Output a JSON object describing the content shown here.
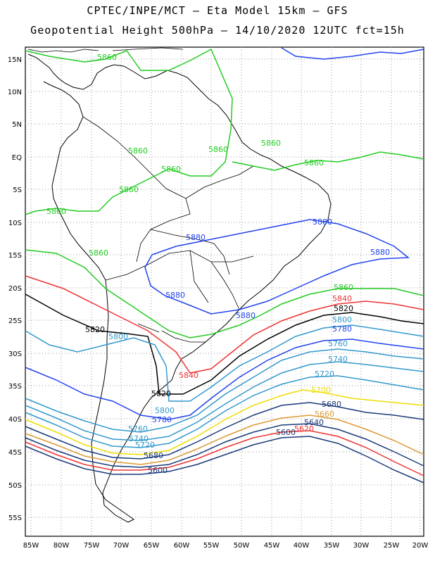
{
  "header": {
    "title_line1": "CPTEC/INPE/MCT –  Eta Model 15km – GFS",
    "title_line2": "Geopotential Height 500hPa – 14/10/2020 12UTC fct=15h"
  },
  "map": {
    "lat_ticks": [
      "15N",
      "10N",
      "5N",
      "EQ",
      "5S",
      "10S",
      "15S",
      "20S",
      "25S",
      "30S",
      "35S",
      "40S",
      "45S",
      "50S",
      "55S"
    ],
    "lon_ticks": [
      "85W",
      "80W",
      "75W",
      "70W",
      "65W",
      "60W",
      "55W",
      "50W",
      "45W",
      "40W",
      "35W",
      "30W",
      "25W",
      "20W"
    ],
    "grid": "dotted",
    "coastline_color": "#000000",
    "contour_labels": [
      {
        "text": "5860",
        "color": "#22cc22"
      },
      {
        "text": "5860",
        "color": "#22cc22"
      },
      {
        "text": "5860",
        "color": "#22cc22"
      },
      {
        "text": "5860",
        "color": "#22cc22"
      },
      {
        "text": "5860",
        "color": "#22cc22"
      },
      {
        "text": "5860",
        "color": "#22cc22"
      },
      {
        "text": "5860",
        "color": "#22cc22"
      },
      {
        "text": "5860",
        "color": "#22cc22"
      },
      {
        "text": "5860",
        "color": "#22cc22"
      },
      {
        "text": "5860",
        "color": "#22cc22"
      },
      {
        "text": "5880",
        "color": "#2244ee"
      },
      {
        "text": "5880",
        "color": "#2244ee"
      },
      {
        "text": "5880",
        "color": "#2244ee"
      },
      {
        "text": "5880",
        "color": "#2244ee"
      },
      {
        "text": "5880",
        "color": "#2244ee"
      },
      {
        "text": "5840",
        "color": "#ee3333"
      },
      {
        "text": "5840",
        "color": "#ee3333"
      },
      {
        "text": "5820",
        "color": "#000000"
      },
      {
        "text": "5820",
        "color": "#000000"
      },
      {
        "text": "5820",
        "color": "#000000"
      },
      {
        "text": "5800",
        "color": "#3399cc"
      },
      {
        "text": "5800",
        "color": "#3399cc"
      },
      {
        "text": "5800",
        "color": "#3399cc"
      },
      {
        "text": "5780",
        "color": "#2244ee"
      },
      {
        "text": "5780",
        "color": "#2244ee"
      },
      {
        "text": "5760",
        "color": "#3399cc"
      },
      {
        "text": "5760",
        "color": "#3399cc"
      },
      {
        "text": "5740",
        "color": "#3399cc"
      },
      {
        "text": "5740",
        "color": "#3399cc"
      },
      {
        "text": "5720",
        "color": "#3399cc"
      },
      {
        "text": "5720",
        "color": "#3399cc"
      },
      {
        "text": "5700",
        "color": "#eedd00"
      },
      {
        "text": "5680",
        "color": "#1a3a7a"
      },
      {
        "text": "5680",
        "color": "#1a3a7a"
      },
      {
        "text": "5660",
        "color": "#dd9933"
      },
      {
        "text": "5640",
        "color": "#1a3a7a"
      },
      {
        "text": "5620",
        "color": "#ee3333"
      },
      {
        "text": "5600",
        "color": "#1a3a7a"
      },
      {
        "text": "5600",
        "color": "#1a3a7a"
      }
    ]
  }
}
